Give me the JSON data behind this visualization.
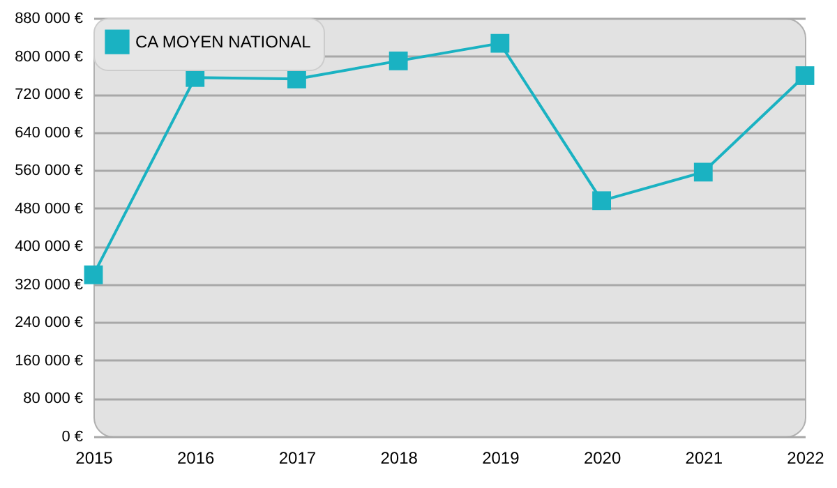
{
  "chart_data": {
    "type": "line",
    "categories": [
      "2015",
      "2016",
      "2017",
      "2018",
      "2019",
      "2020",
      "2021",
      "2022"
    ],
    "series": [
      {
        "name": "CA MOYEN NATIONAL",
        "color": "#1ab2c2",
        "values": [
          340000,
          755000,
          752000,
          790000,
          827000,
          496000,
          556000,
          759000
        ]
      }
    ],
    "ylim": [
      0,
      880000
    ],
    "yticks": [
      {
        "value": 0,
        "label": "0 €"
      },
      {
        "value": 80000,
        "label": "80 000 €"
      },
      {
        "value": 160000,
        "label": "160 000 €"
      },
      {
        "value": 240000,
        "label": "240 000 €"
      },
      {
        "value": 320000,
        "label": "320 000 €"
      },
      {
        "value": 400000,
        "label": "400 000 €"
      },
      {
        "value": 480000,
        "label": "480 000 €"
      },
      {
        "value": 560000,
        "label": "560 000 €"
      },
      {
        "value": 640000,
        "label": "640 000 €"
      },
      {
        "value": 720000,
        "label": "720 000 €"
      },
      {
        "value": 800000,
        "label": "800 000 €"
      },
      {
        "value": 880000,
        "label": "880 000 €"
      }
    ],
    "grid": "y",
    "legend": "top left",
    "marker": "square"
  }
}
